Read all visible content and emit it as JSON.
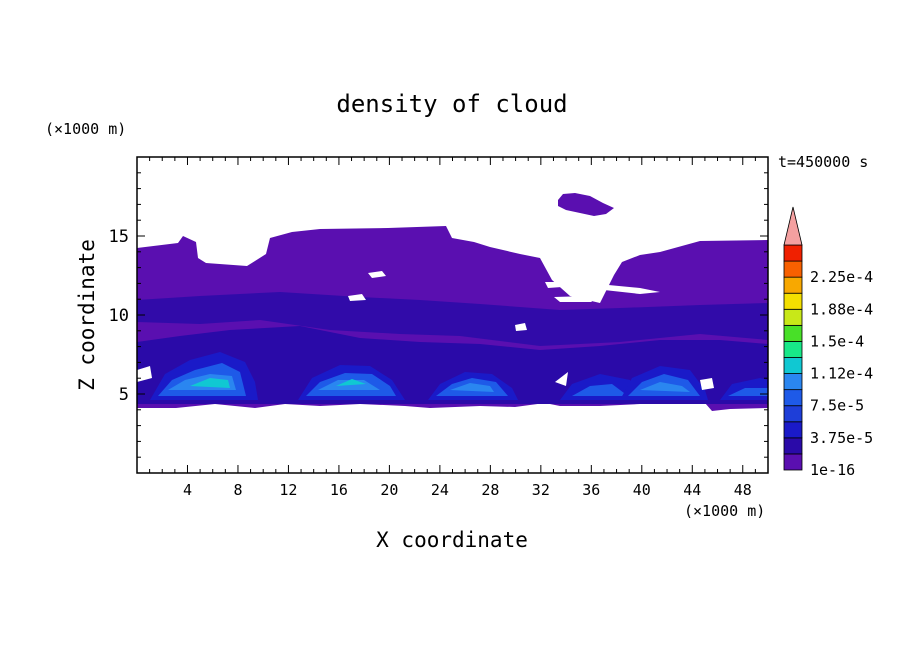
{
  "chart_data": {
    "type": "heatmap",
    "title": "density of cloud",
    "xlabel": "X coordinate",
    "ylabel": "Z coordinate",
    "x_unit": "(×1000 m)",
    "y_unit": "(×1000 m)",
    "time_label": "t=450000 s",
    "xlim": [
      0,
      50
    ],
    "ylim": [
      0,
      20
    ],
    "x_ticks": [
      "4",
      "8",
      "12",
      "16",
      "20",
      "24",
      "28",
      "32",
      "36",
      "40",
      "44",
      "48"
    ],
    "y_ticks": [
      "5",
      "10",
      "15"
    ],
    "colorbar": {
      "levels": [
        1e-16,
        1.875e-05,
        3.75e-05,
        5.625e-05,
        7.5e-05,
        9.375e-05,
        0.0001125,
        0.00013125,
        0.00015,
        0.00016875,
        0.0001875,
        0.00020625,
        0.000225,
        0.00024375
      ],
      "labels": [
        "1e-16",
        "3.75e-5",
        "7.5e-5",
        "1.12e-4",
        "1.5e-4",
        "1.88e-4",
        "2.25e-4"
      ],
      "colors": [
        "#5a0fb0",
        "#2a0aa8",
        "#1a1ac8",
        "#1e3ed8",
        "#1e5ae8",
        "#2a86f0",
        "#10c8d2",
        "#18e888",
        "#48e028",
        "#c8e818",
        "#f4e000",
        "#f8a800",
        "#f86000",
        "#f02000"
      ],
      "overflow_color": "#f4a0a0"
    },
    "regions": [
      {
        "name": "main-cloud-layer",
        "x": [
          0,
          50
        ],
        "z": [
          4.2,
          15.3
        ],
        "level": "1e-16"
      },
      {
        "name": "isolated-cloud",
        "x": [
          33.5,
          37.5
        ],
        "z": [
          16.5,
          17.5
        ],
        "level": "1e-16"
      },
      {
        "name": "cell-1",
        "x": [
          2,
          10
        ],
        "z": [
          4.6,
          6.8
        ],
        "peak": "1.12e-4"
      },
      {
        "name": "cell-2",
        "x": [
          13.5,
          21
        ],
        "z": [
          4.6,
          6.5
        ],
        "peak": "1.12e-4"
      },
      {
        "name": "cell-3",
        "x": [
          24,
          30
        ],
        "z": [
          4.6,
          6.2
        ],
        "peak": "9.4e-5"
      },
      {
        "name": "cell-4",
        "x": [
          33,
          38
        ],
        "z": [
          4.6,
          6.0
        ],
        "peak": "7.5e-5"
      },
      {
        "name": "cell-5",
        "x": [
          39,
          45
        ],
        "z": [
          4.6,
          6.3
        ],
        "peak": "9.4e-5"
      }
    ]
  }
}
